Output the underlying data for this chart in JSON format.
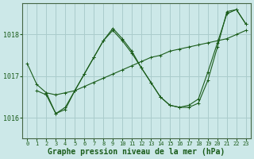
{
  "background_color": "#cce8e8",
  "grid_color": "#aacccc",
  "line_color": "#1a5c1a",
  "xlabel": "Graphe pression niveau de la mer (hPa)",
  "xlabel_fontsize": 7,
  "xlim": [
    -0.5,
    23.5
  ],
  "ylim": [
    1015.5,
    1018.75
  ],
  "yticks": [
    1016,
    1017,
    1018
  ],
  "xticks": [
    0,
    1,
    2,
    3,
    4,
    5,
    6,
    7,
    8,
    9,
    10,
    11,
    12,
    13,
    14,
    15,
    16,
    17,
    18,
    19,
    20,
    21,
    22,
    23
  ],
  "lines": [
    {
      "x": [
        0,
        1,
        2,
        3,
        4,
        5,
        6,
        7,
        8,
        9,
        10,
        11,
        12,
        13,
        14,
        15,
        16,
        17,
        18,
        19,
        20,
        21,
        22,
        23
      ],
      "y": [
        1017.3,
        1016.8,
        1016.6,
        1016.55,
        1016.6,
        1016.65,
        1016.75,
        1016.85,
        1016.95,
        1017.05,
        1017.15,
        1017.25,
        1017.35,
        1017.45,
        1017.5,
        1017.6,
        1017.65,
        1017.7,
        1017.75,
        1017.8,
        1017.85,
        1017.9,
        1018.0,
        1018.1
      ]
    },
    {
      "x": [
        1,
        2,
        3,
        4,
        5,
        6,
        7,
        8,
        9,
        10,
        11,
        12,
        13,
        14,
        15,
        16,
        17,
        18,
        19,
        20,
        21,
        22,
        23
      ],
      "y": [
        1016.65,
        1016.55,
        1016.1,
        1016.2,
        1016.65,
        1017.05,
        1017.45,
        1017.85,
        1018.1,
        1017.85,
        1017.55,
        1017.2,
        1016.85,
        1016.5,
        1016.3,
        1016.25,
        1016.25,
        1016.35,
        1016.9,
        1017.7,
        1018.55,
        1018.6,
        1018.25
      ]
    },
    {
      "x": [
        2,
        3,
        4,
        5,
        6,
        7,
        8,
        9,
        10,
        11,
        12,
        13,
        14,
        15,
        16,
        17,
        18,
        19,
        20,
        21,
        22,
        23
      ],
      "y": [
        1016.6,
        1016.1,
        1016.25,
        1016.65,
        1017.05,
        1017.45,
        1017.85,
        1018.15,
        1017.9,
        1017.6,
        1017.2,
        1016.85,
        1016.5,
        1016.3,
        1016.25,
        1016.3,
        1016.45,
        1017.1,
        1017.8,
        1018.5,
        1018.6,
        1018.25
      ]
    }
  ]
}
